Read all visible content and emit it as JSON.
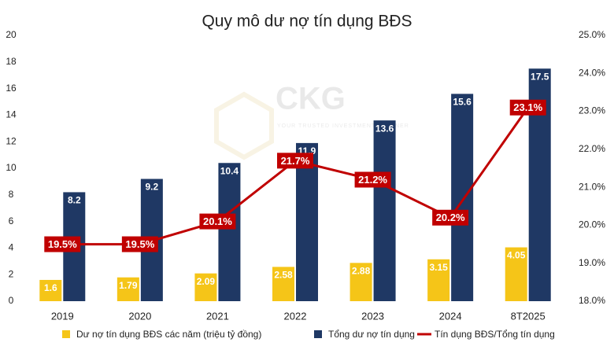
{
  "chart_data": {
    "type": "bar",
    "title": "Quy mô dư nợ tín dụng BĐS",
    "watermark": {
      "logo": "CKG",
      "tagline": "YOUR TRUSTED INVESTMENT PARTNER"
    },
    "categories": [
      "2019",
      "2020",
      "2021",
      "2022",
      "2023",
      "2024",
      "8T2025"
    ],
    "series": [
      {
        "name": "Dư nợ tín dụng BĐS các năm (triệu tỷ đồng)",
        "type": "bar",
        "color": "#f5c518",
        "values": [
          1.6,
          1.79,
          2.09,
          2.58,
          2.88,
          3.15,
          4.05
        ]
      },
      {
        "name": "Tổng dư nợ tín dụng",
        "type": "bar",
        "color": "#1f3864",
        "values": [
          8.2,
          9.2,
          10.4,
          11.9,
          13.6,
          15.6,
          17.5
        ]
      },
      {
        "name": "Tín dụng BĐS/Tổng tín dụng",
        "type": "line",
        "axis": "y2",
        "color": "#c00000",
        "values": [
          19.5,
          19.5,
          20.1,
          21.7,
          21.2,
          20.2,
          23.1
        ],
        "value_labels": [
          "19.5%",
          "19.5%",
          "20.1%",
          "21.7%",
          "21.2%",
          "20.2%",
          "23.1%"
        ]
      }
    ],
    "ylim": [
      0,
      20
    ],
    "yticks": [
      0,
      2,
      4,
      6,
      8,
      10,
      12,
      14,
      16,
      18,
      20
    ],
    "y2lim": [
      18,
      25
    ],
    "y2ticks": [
      {
        "value": 18,
        "label": "18.0%"
      },
      {
        "value": 19,
        "label": "19.0%"
      },
      {
        "value": 20,
        "label": "20.0%"
      },
      {
        "value": 21,
        "label": "21.0%"
      },
      {
        "value": 22,
        "label": "22.0%"
      },
      {
        "value": 23,
        "label": "23.0%"
      },
      {
        "value": 24,
        "label": "24.0%"
      },
      {
        "value": 25,
        "label": "25.0%"
      }
    ],
    "legend": "bottom"
  }
}
